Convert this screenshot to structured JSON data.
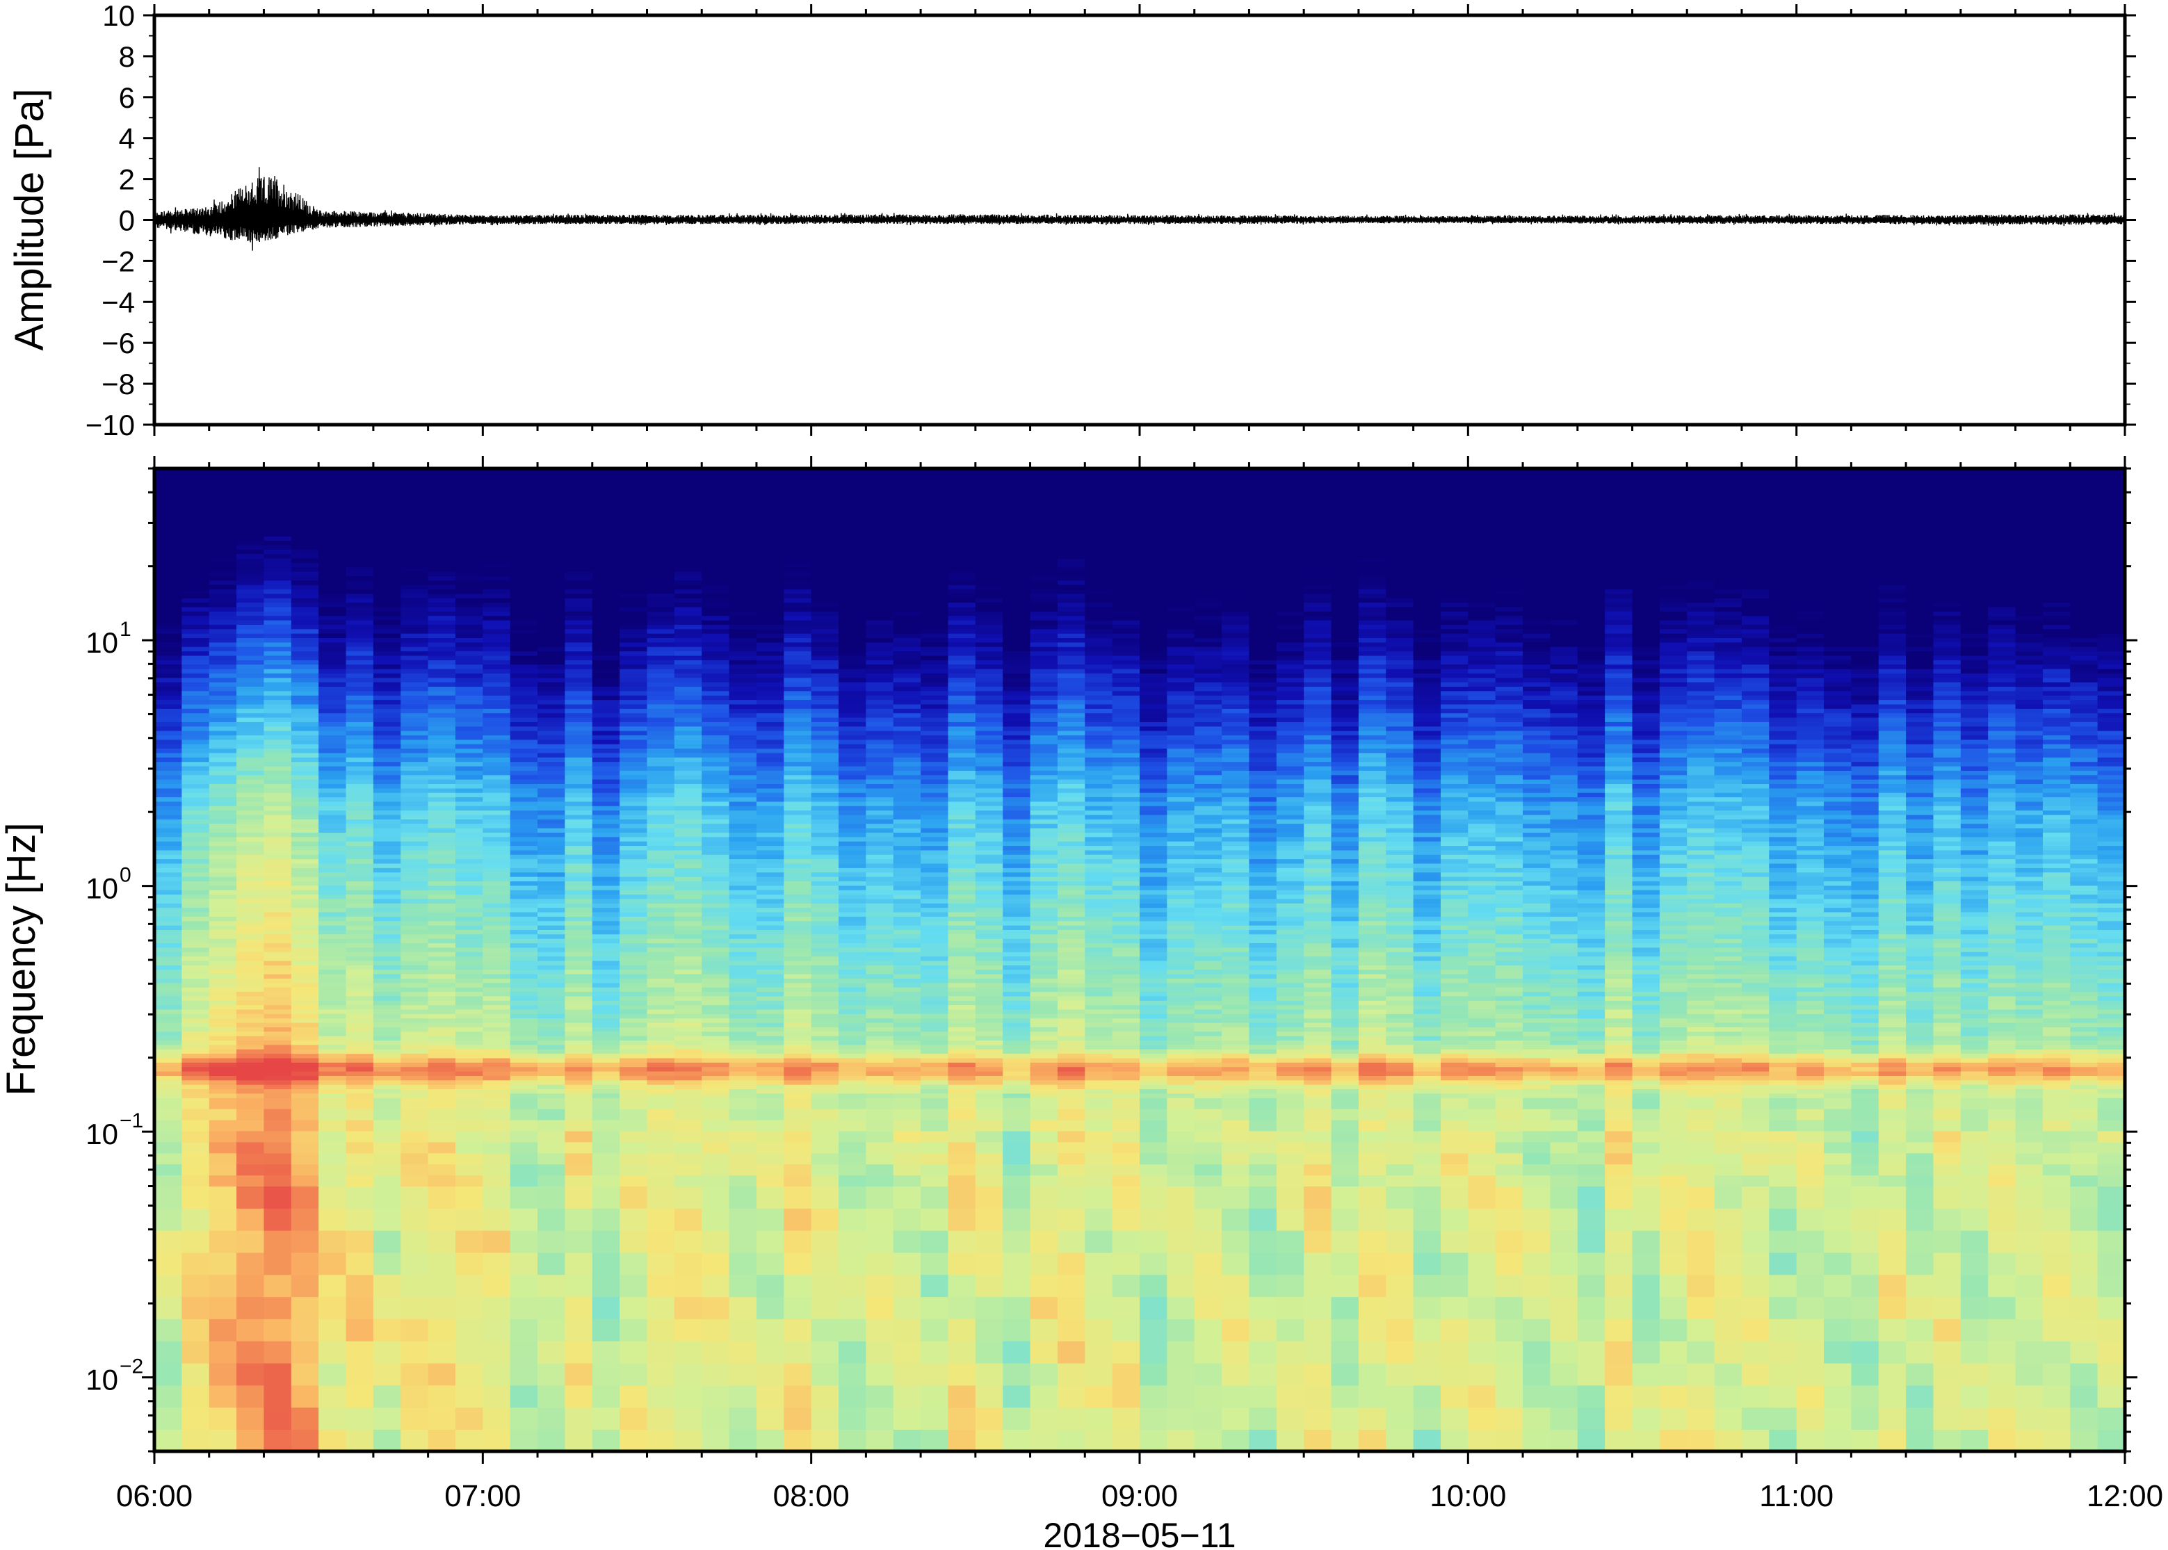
{
  "chart_data": [
    {
      "type": "line",
      "panel": "waveform",
      "ylabel": "Amplitude [Pa]",
      "ylim": [
        -10,
        10
      ],
      "yticks": [
        {
          "value": 10,
          "label": "10"
        },
        {
          "value": 8,
          "label": "8"
        },
        {
          "value": 6,
          "label": "6"
        },
        {
          "value": 4,
          "label": "4"
        },
        {
          "value": 2,
          "label": "2"
        },
        {
          "value": 0,
          "label": "0"
        },
        {
          "value": -2,
          "label": "−2"
        },
        {
          "value": -4,
          "label": "−4"
        },
        {
          "value": -6,
          "label": "−6"
        },
        {
          "value": -8,
          "label": "−8"
        },
        {
          "value": -10,
          "label": "−10"
        }
      ],
      "xlim": [
        "06:00",
        "12:00"
      ],
      "series": [
        {
          "color": "#000000",
          "envelope": [
            {
              "time": "06:00",
              "min": -0.5,
              "max": 0.5
            },
            {
              "time": "06:10",
              "min": -1.0,
              "max": 0.8
            },
            {
              "time": "06:18",
              "min": -1.5,
              "max": 2.5
            },
            {
              "time": "06:22",
              "min": -1.2,
              "max": 2.8
            },
            {
              "time": "06:30",
              "min": -0.5,
              "max": 0.6
            },
            {
              "time": "07:00",
              "min": -0.25,
              "max": 0.3
            },
            {
              "time": "08:30",
              "min": -0.25,
              "max": 0.35
            },
            {
              "time": "09:00",
              "min": -0.25,
              "max": 0.3
            },
            {
              "time": "10:00",
              "min": -0.2,
              "max": 0.25
            },
            {
              "time": "11:00",
              "min": -0.25,
              "max": 0.3
            },
            {
              "time": "12:00",
              "min": -0.3,
              "max": 0.35
            }
          ]
        }
      ]
    },
    {
      "type": "heatmap",
      "panel": "spectrogram",
      "ylabel": "Frequency [Hz]",
      "xlabel": "2018−05−11",
      "yscale": "log",
      "ylim": [
        0.005,
        50
      ],
      "yticks": [
        {
          "value": 10,
          "base": "10",
          "exp": "1"
        },
        {
          "value": 1,
          "base": "10",
          "exp": "0"
        },
        {
          "value": 0.1,
          "base": "10",
          "exp": "−1"
        },
        {
          "value": 0.01,
          "base": "10",
          "exp": "−2"
        }
      ],
      "xticks": [
        "06:00",
        "07:00",
        "08:00",
        "09:00",
        "10:00",
        "11:00",
        "12:00"
      ],
      "xlim": [
        "06:00",
        "12:00"
      ],
      "colormap": [
        "#0a0078",
        "#1010b4",
        "#1e50e6",
        "#2aa0f0",
        "#64dcf0",
        "#96e6b4",
        "#d2f096",
        "#f5e678",
        "#fab464",
        "#f07850",
        "#e64646"
      ],
      "features": [
        {
          "description": "microbarom band",
          "frequency": 0.18
        },
        {
          "description": "high-energy event",
          "time": "06:20"
        }
      ]
    }
  ]
}
